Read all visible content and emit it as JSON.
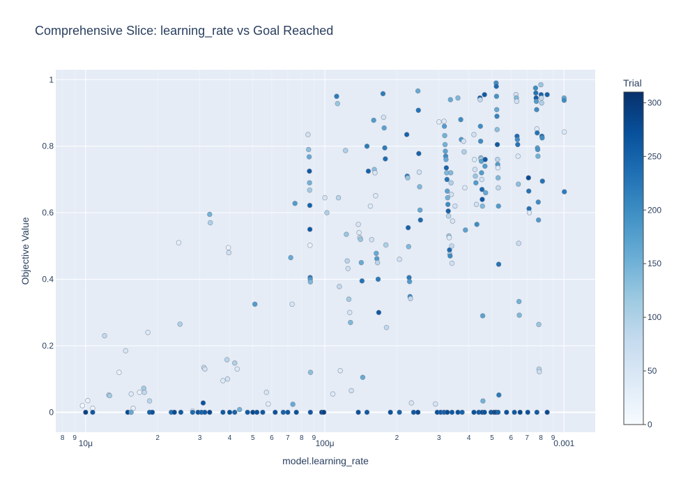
{
  "chart_data": {
    "type": "scatter",
    "title": "Comprehensive Slice: learning_rate vs Goal Reached",
    "xlabel": "model.learning_rate",
    "ylabel": "Objective Value",
    "x_scale": "log",
    "xlim": [
      7.5e-06,
      0.00135
    ],
    "ylim": [
      -0.06,
      1.03
    ],
    "grid": true,
    "x_major_ticks": [
      {
        "value": 1e-05,
        "label": "10μ"
      },
      {
        "value": 0.0001,
        "label": "100μ"
      },
      {
        "value": 0.001,
        "label": "0.001"
      }
    ],
    "x_minor_ticks": [
      {
        "value": 8e-06,
        "label": "8"
      },
      {
        "value": 9e-06,
        "label": "9"
      },
      {
        "value": 2e-05,
        "label": "2"
      },
      {
        "value": 3e-05,
        "label": "3"
      },
      {
        "value": 4e-05,
        "label": "4"
      },
      {
        "value": 5e-05,
        "label": "5"
      },
      {
        "value": 6e-05,
        "label": "6"
      },
      {
        "value": 7e-05,
        "label": "7"
      },
      {
        "value": 8e-05,
        "label": "8"
      },
      {
        "value": 9e-05,
        "label": "9"
      },
      {
        "value": 0.0002,
        "label": "2"
      },
      {
        "value": 0.0003,
        "label": "3"
      },
      {
        "value": 0.0004,
        "label": "4"
      },
      {
        "value": 0.0005,
        "label": "5"
      },
      {
        "value": 0.0006,
        "label": "6"
      },
      {
        "value": 0.0007,
        "label": "7"
      },
      {
        "value": 0.0008,
        "label": "8"
      },
      {
        "value": 0.0009,
        "label": "9"
      }
    ],
    "y_ticks": [
      {
        "value": 0,
        "label": "0"
      },
      {
        "value": 0.2,
        "label": "0.2"
      },
      {
        "value": 0.4,
        "label": "0.4"
      },
      {
        "value": 0.6,
        "label": "0.6"
      },
      {
        "value": 0.8,
        "label": "0.8"
      },
      {
        "value": 1,
        "label": "1"
      }
    ],
    "colorbar": {
      "title": "Trial",
      "range": [
        0,
        310
      ],
      "colorscale": [
        "#f7fbff",
        "#deebf7",
        "#c6dbef",
        "#9ecae1",
        "#6baed6",
        "#4292c6",
        "#2171b5",
        "#08519c",
        "#08306b"
      ],
      "ticks": [
        {
          "value": 0,
          "label": "0"
        },
        {
          "value": 50,
          "label": "50"
        },
        {
          "value": 100,
          "label": "100"
        },
        {
          "value": 150,
          "label": "150"
        },
        {
          "value": 200,
          "label": "200"
        },
        {
          "value": 250,
          "label": "250"
        },
        {
          "value": 300,
          "label": "300"
        }
      ]
    },
    "points": [
      [
        9.7e-06,
        0.02,
        10
      ],
      [
        1.02e-05,
        0.035,
        20
      ],
      [
        1.07e-05,
        0.012,
        15
      ],
      [
        1.2e-05,
        0.23,
        80
      ],
      [
        1.25e-05,
        0.052,
        100
      ],
      [
        1.26e-05,
        0.05,
        110
      ],
      [
        1.38e-05,
        0.12,
        20
      ],
      [
        1.47e-05,
        0.185,
        50
      ],
      [
        1.55e-05,
        0.055,
        40
      ],
      [
        1.58e-05,
        0.012,
        30
      ],
      [
        1.68e-05,
        0.06,
        20
      ],
      [
        1.75e-05,
        0.072,
        110
      ],
      [
        1.76e-05,
        0.06,
        80
      ],
      [
        1.82e-05,
        0.24,
        40
      ],
      [
        1.85e-05,
        0.034,
        90
      ],
      [
        2.45e-05,
        0.51,
        30
      ],
      [
        2.48e-05,
        0.265,
        100
      ],
      [
        2.8e-05,
        0.004,
        20
      ],
      [
        3.1e-05,
        0.028,
        270
      ],
      [
        3.12e-05,
        0.135,
        80
      ],
      [
        3.15e-05,
        0.13,
        60
      ],
      [
        3.3e-05,
        0.595,
        150
      ],
      [
        3.32e-05,
        0.57,
        100
      ],
      [
        3.75e-05,
        0.095,
        40
      ],
      [
        3.9e-05,
        0.158,
        90
      ],
      [
        3.92e-05,
        0.1,
        60
      ],
      [
        3.95e-05,
        0.495,
        20
      ],
      [
        3.97e-05,
        0.48,
        60
      ],
      [
        4.2e-05,
        0.148,
        100
      ],
      [
        4.3e-05,
        0.13,
        40
      ],
      [
        4.4e-05,
        0.008,
        150
      ],
      [
        5.1e-05,
        0.325,
        180
      ],
      [
        5.7e-05,
        0.06,
        50
      ],
      [
        5.8e-05,
        0.025,
        30
      ],
      [
        7.2e-05,
        0.465,
        160
      ],
      [
        7.3e-05,
        0.325,
        50
      ],
      [
        7.35e-05,
        0.024,
        160
      ],
      [
        7.5e-05,
        0.628,
        180
      ],
      [
        8.5e-05,
        0.835,
        60
      ],
      [
        8.55e-05,
        0.79,
        130
      ],
      [
        8.6e-05,
        0.768,
        160
      ],
      [
        8.62e-05,
        0.725,
        260
      ],
      [
        8.63e-05,
        0.69,
        150
      ],
      [
        8.64e-05,
        0.668,
        110
      ],
      [
        8.65e-05,
        0.622,
        250
      ],
      [
        8.66e-05,
        0.55,
        260
      ],
      [
        8.67e-05,
        0.502,
        20
      ],
      [
        8.68e-05,
        0.405,
        230
      ],
      [
        8.69e-05,
        0.4,
        180
      ],
      [
        8.7e-05,
        0.392,
        140
      ],
      [
        8.71e-05,
        0.12,
        130
      ],
      [
        0.0001,
        0.645,
        50
      ],
      [
        0.000102,
        0.6,
        100
      ],
      [
        0.000108,
        0.055,
        40
      ],
      [
        0.000112,
        0.95,
        220
      ],
      [
        0.000113,
        0.928,
        120
      ],
      [
        0.000114,
        0.645,
        90
      ],
      [
        0.000115,
        0.378,
        80
      ],
      [
        0.000116,
        0.125,
        40
      ],
      [
        0.000122,
        0.787,
        100
      ],
      [
        0.000123,
        0.535,
        120
      ],
      [
        0.000124,
        0.455,
        90
      ],
      [
        0.000125,
        0.432,
        60
      ],
      [
        0.000126,
        0.34,
        110
      ],
      [
        0.000127,
        0.3,
        50
      ],
      [
        0.000128,
        0.27,
        140
      ],
      [
        0.000129,
        0.065,
        60
      ],
      [
        0.000138,
        0.565,
        50
      ],
      [
        0.000139,
        0.54,
        40
      ],
      [
        0.00014,
        0.525,
        80
      ],
      [
        0.000141,
        0.52,
        120
      ],
      [
        0.000142,
        0.45,
        160
      ],
      [
        0.000143,
        0.395,
        230
      ],
      [
        0.000144,
        0.105,
        160
      ],
      [
        0.00015,
        0.8,
        220
      ],
      [
        0.000152,
        0.725,
        250
      ],
      [
        0.000155,
        0.62,
        40
      ],
      [
        0.000157,
        0.519,
        60
      ],
      [
        0.00016,
        0.878,
        180
      ],
      [
        0.000161,
        0.73,
        130
      ],
      [
        0.000162,
        0.72,
        50
      ],
      [
        0.000163,
        0.651,
        40
      ],
      [
        0.000164,
        0.478,
        160
      ],
      [
        0.000165,
        0.462,
        180
      ],
      [
        0.000166,
        0.45,
        90
      ],
      [
        0.000167,
        0.4,
        220
      ],
      [
        0.000168,
        0.3,
        260
      ],
      [
        0.000175,
        0.958,
        220
      ],
      [
        0.000176,
        0.887,
        60
      ],
      [
        0.000177,
        0.855,
        170
      ],
      [
        0.000178,
        0.795,
        220
      ],
      [
        0.000179,
        0.762,
        240
      ],
      [
        0.00018,
        0.503,
        100
      ],
      [
        0.000181,
        0.255,
        80
      ],
      [
        0.000205,
        0.46,
        60
      ],
      [
        0.00022,
        0.835,
        250
      ],
      [
        0.000221,
        0.71,
        220
      ],
      [
        0.000222,
        0.705,
        120
      ],
      [
        0.000223,
        0.555,
        250
      ],
      [
        0.000224,
        0.498,
        140
      ],
      [
        0.000225,
        0.405,
        220
      ],
      [
        0.000226,
        0.393,
        180
      ],
      [
        0.000227,
        0.348,
        200
      ],
      [
        0.000228,
        0.342,
        80
      ],
      [
        0.00023,
        0.028,
        50
      ],
      [
        0.000245,
        0.966,
        160
      ],
      [
        0.000246,
        0.908,
        230
      ],
      [
        0.000247,
        0.778,
        250
      ],
      [
        0.000248,
        0.722,
        60
      ],
      [
        0.000249,
        0.678,
        140
      ],
      [
        0.00025,
        0.608,
        160
      ],
      [
        0.000251,
        0.578,
        240
      ],
      [
        0.00029,
        0.025,
        50
      ],
      [
        0.0003,
        0.873,
        30
      ],
      [
        0.000315,
        0.875,
        40
      ],
      [
        0.000316,
        0.86,
        180
      ],
      [
        0.000317,
        0.832,
        150
      ],
      [
        0.000318,
        0.805,
        150
      ],
      [
        0.000319,
        0.785,
        170
      ],
      [
        0.00032,
        0.77,
        200
      ],
      [
        0.000321,
        0.76,
        160
      ],
      [
        0.000322,
        0.735,
        250
      ],
      [
        0.000323,
        0.72,
        140
      ],
      [
        0.000324,
        0.7,
        230
      ],
      [
        0.000325,
        0.665,
        170
      ],
      [
        0.000326,
        0.645,
        150
      ],
      [
        0.000327,
        0.625,
        200
      ],
      [
        0.000328,
        0.605,
        250
      ],
      [
        0.000329,
        0.59,
        90
      ],
      [
        0.00033,
        0.53,
        120
      ],
      [
        0.000331,
        0.525,
        40
      ],
      [
        0.000332,
        0.488,
        240
      ],
      [
        0.000333,
        0.475,
        100
      ],
      [
        0.000334,
        0.47,
        200
      ],
      [
        0.000335,
        0.94,
        160
      ],
      [
        0.000336,
        0.72,
        140
      ],
      [
        0.000337,
        0.69,
        100
      ],
      [
        0.000338,
        0.655,
        60
      ],
      [
        0.000339,
        0.5,
        80
      ],
      [
        0.00034,
        0.448,
        60
      ],
      [
        0.000342,
        0.575,
        50
      ],
      [
        0.00035,
        0.62,
        60
      ],
      [
        0.00036,
        0.945,
        140
      ],
      [
        0.00037,
        0.88,
        200
      ],
      [
        0.000372,
        0.82,
        180
      ],
      [
        0.00038,
        0.815,
        60
      ],
      [
        0.000382,
        0.783,
        100
      ],
      [
        0.000385,
        0.675,
        40
      ],
      [
        0.000387,
        0.548,
        170
      ],
      [
        0.00042,
        0.835,
        60
      ],
      [
        0.000422,
        0.76,
        40
      ],
      [
        0.000424,
        0.73,
        60
      ],
      [
        0.000426,
        0.71,
        120
      ],
      [
        0.000428,
        0.69,
        180
      ],
      [
        0.00043,
        0.625,
        60
      ],
      [
        0.000432,
        0.565,
        200
      ],
      [
        0.000445,
        0.945,
        260
      ],
      [
        0.000446,
        0.94,
        80
      ],
      [
        0.000447,
        0.86,
        200
      ],
      [
        0.000448,
        0.815,
        200
      ],
      [
        0.000449,
        0.765,
        140
      ],
      [
        0.00045,
        0.76,
        80
      ],
      [
        0.000451,
        0.755,
        170
      ],
      [
        0.000452,
        0.72,
        180
      ],
      [
        0.000453,
        0.7,
        60
      ],
      [
        0.000454,
        0.67,
        240
      ],
      [
        0.000455,
        0.64,
        260
      ],
      [
        0.000456,
        0.62,
        140
      ],
      [
        0.000457,
        0.29,
        170
      ],
      [
        0.000458,
        0.034,
        150
      ],
      [
        0.000465,
        0.955,
        260
      ],
      [
        0.000467,
        0.74,
        180
      ],
      [
        0.000468,
        0.76,
        260
      ],
      [
        0.00047,
        0.66,
        160
      ],
      [
        0.00052,
        0.99,
        200
      ],
      [
        0.000521,
        0.98,
        240
      ],
      [
        0.000522,
        0.95,
        190
      ],
      [
        0.000523,
        0.91,
        160
      ],
      [
        0.000524,
        0.89,
        210
      ],
      [
        0.000525,
        0.85,
        130
      ],
      [
        0.000526,
        0.805,
        260
      ],
      [
        0.000527,
        0.76,
        90
      ],
      [
        0.000528,
        0.745,
        180
      ],
      [
        0.000529,
        0.735,
        40
      ],
      [
        0.00053,
        0.705,
        140
      ],
      [
        0.000531,
        0.675,
        80
      ],
      [
        0.000532,
        0.62,
        180
      ],
      [
        0.000533,
        0.445,
        230
      ],
      [
        0.000534,
        0.052,
        220
      ],
      [
        0.00063,
        0.955,
        60
      ],
      [
        0.000632,
        0.945,
        140
      ],
      [
        0.000634,
        0.935,
        60
      ],
      [
        0.000636,
        0.83,
        240
      ],
      [
        0.000638,
        0.82,
        200
      ],
      [
        0.00064,
        0.805,
        230
      ],
      [
        0.000642,
        0.77,
        40
      ],
      [
        0.000644,
        0.686,
        130
      ],
      [
        0.000646,
        0.508,
        70
      ],
      [
        0.000648,
        0.333,
        150
      ],
      [
        0.00065,
        0.292,
        140
      ],
      [
        0.00071,
        0.705,
        280
      ],
      [
        0.000712,
        0.665,
        230
      ],
      [
        0.000714,
        0.612,
        230
      ],
      [
        0.000716,
        0.6,
        40
      ],
      [
        0.00076,
        0.975,
        200
      ],
      [
        0.000762,
        0.96,
        230
      ],
      [
        0.000764,
        0.945,
        260
      ],
      [
        0.000766,
        0.935,
        180
      ],
      [
        0.000768,
        0.91,
        200
      ],
      [
        0.00077,
        0.852,
        40
      ],
      [
        0.000772,
        0.84,
        230
      ],
      [
        0.000774,
        0.795,
        170
      ],
      [
        0.000776,
        0.79,
        190
      ],
      [
        0.000778,
        0.77,
        150
      ],
      [
        0.00078,
        0.632,
        200
      ],
      [
        0.000782,
        0.578,
        180
      ],
      [
        0.000784,
        0.264,
        120
      ],
      [
        0.000786,
        0.13,
        90
      ],
      [
        0.000788,
        0.122,
        70
      ],
      [
        0.0008,
        0.985,
        120
      ],
      [
        0.000802,
        0.955,
        250
      ],
      [
        0.000804,
        0.945,
        80
      ],
      [
        0.000806,
        0.93,
        100
      ],
      [
        0.000808,
        0.83,
        240
      ],
      [
        0.00081,
        0.825,
        200
      ],
      [
        0.000812,
        0.695,
        230
      ],
      [
        0.00085,
        0.955,
        250
      ],
      [
        0.001,
        0.945,
        160
      ],
      [
        0.001001,
        0.938,
        200
      ],
      [
        0.001002,
        0.843,
        40
      ],
      [
        0.001003,
        0.663,
        220
      ]
    ],
    "zero_points": [
      [
        1e-05,
        290
      ],
      [
        1.07e-05,
        260
      ],
      [
        1.5e-05,
        280
      ],
      [
        1.55e-05,
        160
      ],
      [
        1.85e-05,
        250
      ],
      [
        1.9e-05,
        270
      ],
      [
        2.28e-05,
        230
      ],
      [
        2.35e-05,
        280
      ],
      [
        2.5e-05,
        260
      ],
      [
        2.8e-05,
        240
      ],
      [
        2.95e-05,
        270
      ],
      [
        3.05e-05,
        250
      ],
      [
        3.15e-05,
        260
      ],
      [
        3.3e-05,
        280
      ],
      [
        3.75e-05,
        260
      ],
      [
        4e-05,
        270
      ],
      [
        4.2e-05,
        250
      ],
      [
        4.75e-05,
        260
      ],
      [
        5e-05,
        280
      ],
      [
        5.2e-05,
        270
      ],
      [
        5.5e-05,
        260
      ],
      [
        6.2e-05,
        270
      ],
      [
        6.7e-05,
        250
      ],
      [
        7e-05,
        260
      ],
      [
        7.6e-05,
        270
      ],
      [
        8.7e-05,
        260
      ],
      [
        9.7e-05,
        280
      ],
      [
        9.9e-05,
        290
      ],
      [
        0.000138,
        270
      ],
      [
        0.00015,
        260
      ],
      [
        0.000188,
        270
      ],
      [
        0.000205,
        250
      ],
      [
        0.000235,
        260
      ],
      [
        0.000245,
        280
      ],
      [
        0.000295,
        270
      ],
      [
        0.000305,
        260
      ],
      [
        0.000315,
        250
      ],
      [
        0.000325,
        280
      ],
      [
        0.00034,
        260
      ],
      [
        0.00036,
        270
      ],
      [
        0.000375,
        250
      ],
      [
        0.00042,
        270
      ],
      [
        0.00044,
        260
      ],
      [
        0.000455,
        280
      ],
      [
        0.000465,
        270
      ],
      [
        0.000495,
        260
      ],
      [
        0.00051,
        280
      ],
      [
        0.00052,
        290
      ],
      [
        0.00053,
        250
      ],
      [
        0.000575,
        270
      ],
      [
        0.00062,
        260
      ],
      [
        0.000655,
        280
      ],
      [
        0.000705,
        270
      ],
      [
        0.00077,
        260
      ],
      [
        0.00085,
        280
      ]
    ]
  }
}
